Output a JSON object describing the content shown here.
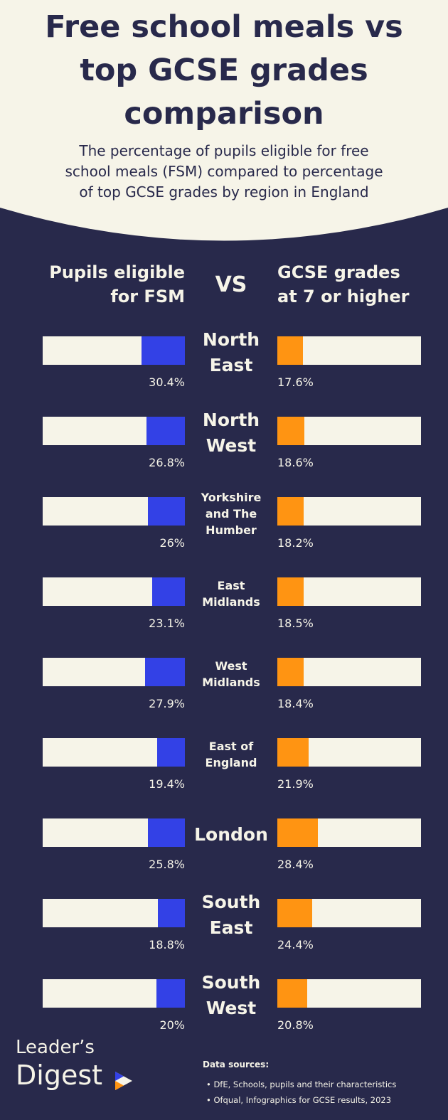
{
  "chart_data": {
    "type": "butterfly_bar",
    "title": "Free school meals vs top GCSE grades comparison",
    "subtitle": "The percentage of pupils eligible for free school meals (FSM) compared to percentage of top GCSE grades by region in England",
    "center_label": "VS",
    "categories": [
      "North East",
      "North West",
      "Yorkshire and The Humber",
      "East Midlands",
      "West Midlands",
      "East of England",
      "London",
      "South East",
      "South West"
    ],
    "xlim": [
      0,
      100
    ],
    "series": [
      {
        "name": "Pupils eligible for FSM",
        "color": "#3341e6",
        "values": [
          30.4,
          26.8,
          26,
          23.1,
          27.9,
          19.4,
          25.8,
          18.8,
          20
        ],
        "value_labels": [
          "30.4%",
          "26.8%",
          "26%",
          "23.1%",
          "27.9%",
          "19.4%",
          "25.8%",
          "18.8%",
          "20%"
        ]
      },
      {
        "name": "GCSE grades at 7 or higher",
        "color": "#ff9412",
        "values": [
          17.6,
          18.6,
          18.2,
          18.5,
          18.4,
          21.9,
          28.4,
          24.4,
          20.8
        ],
        "value_labels": [
          "17.6%",
          "18.6%",
          "18.2%",
          "18.5%",
          "18.4%",
          "21.9%",
          "28.4%",
          "24.4%",
          "20.8%"
        ]
      }
    ]
  },
  "footer": {
    "brand": [
      "Leader’s",
      "Digest"
    ],
    "sources_title": "Data sources:",
    "sources": [
      "DfE, Schools, pupils and their characteristics",
      "Ofqual, Infographics for GCSE results, 2023"
    ]
  }
}
